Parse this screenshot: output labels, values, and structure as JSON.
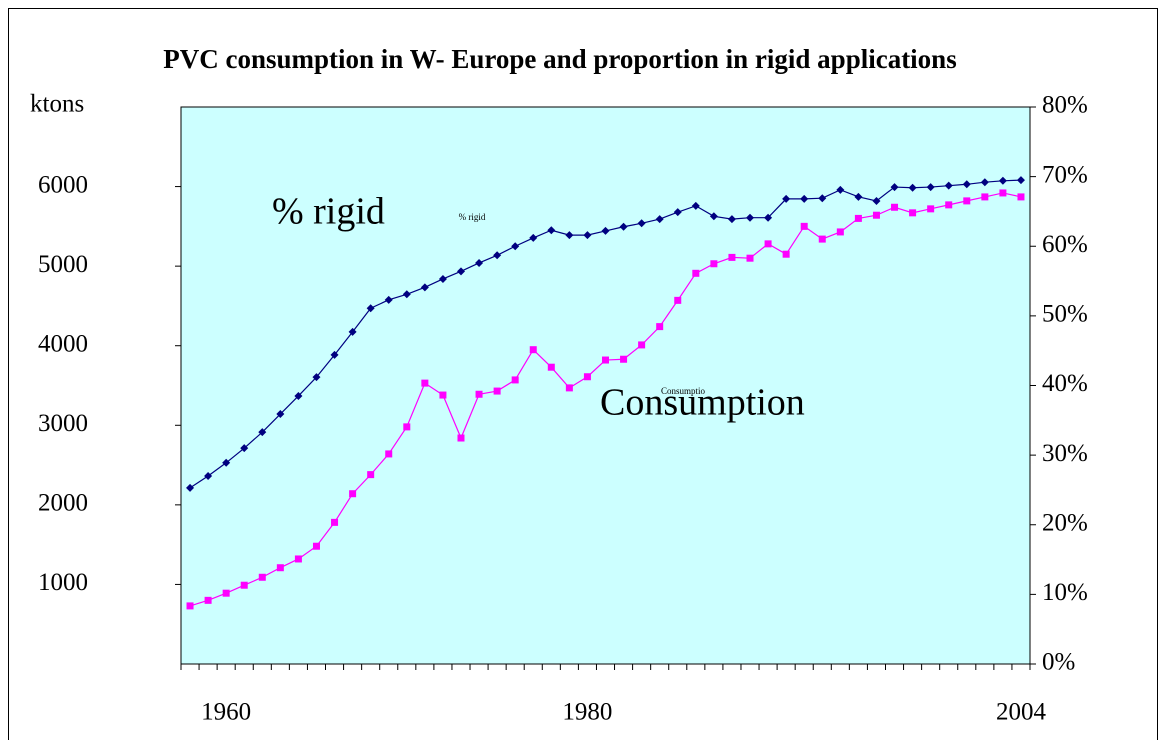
{
  "chart_data": {
    "type": "line",
    "title": "PVC consumption in W- Europe and proportion in rigid applications",
    "ylabel": "ktons",
    "categories": [
      null,
      null,
      "1960",
      null,
      null,
      null,
      null,
      null,
      null,
      null,
      null,
      null,
      null,
      null,
      null,
      null,
      null,
      null,
      null,
      null,
      null,
      null,
      "1980",
      null,
      null,
      null,
      null,
      null,
      null,
      null,
      null,
      null,
      null,
      null,
      null,
      null,
      null,
      null,
      null,
      null,
      null,
      null,
      null,
      null,
      null,
      null,
      "2004"
    ],
    "ylim": [
      0,
      7000
    ],
    "yticks": [
      1000,
      2000,
      3000,
      4000,
      5000,
      6000
    ],
    "y2lim": [
      0,
      80
    ],
    "y2ticks": [
      {
        "value": 0,
        "label": "0%"
      },
      {
        "value": 10,
        "label": "10%"
      },
      {
        "value": 20,
        "label": "20%"
      },
      {
        "value": 30,
        "label": "30%"
      },
      {
        "value": 40,
        "label": "40%"
      },
      {
        "value": 50,
        "label": "50%"
      },
      {
        "value": 60,
        "label": "60%"
      },
      {
        "value": 70,
        "label": "70%"
      },
      {
        "value": 80,
        "label": "80%"
      }
    ],
    "background": "#ccffff",
    "series": [
      {
        "name": "% rigid",
        "color": "#000080",
        "marker": "diamond",
        "axis": "y2",
        "values": [
          25.3,
          27.0,
          28.9,
          31.0,
          33.3,
          35.9,
          38.5,
          41.2,
          44.4,
          47.7,
          51.1,
          52.3,
          53.1,
          54.1,
          55.3,
          56.4,
          57.6,
          58.7,
          60.0,
          61.2,
          62.3,
          61.6,
          61.6,
          62.2,
          62.8,
          63.3,
          63.9,
          64.9,
          65.8,
          64.3,
          63.9,
          64.1,
          64.1,
          66.8,
          66.8,
          66.9,
          68.1,
          67.1,
          66.5,
          68.5,
          68.4,
          68.5,
          68.7,
          68.9,
          69.2,
          69.4,
          69.5
        ]
      },
      {
        "name": "Consumptio",
        "color": "#ff00ff",
        "marker": "square",
        "axis": "y",
        "values": [
          730,
          800,
          890,
          990,
          1090,
          1210,
          1320,
          1480,
          1780,
          2140,
          2380,
          2640,
          2980,
          3530,
          3380,
          2840,
          3390,
          3430,
          3570,
          3950,
          3730,
          3470,
          3610,
          3820,
          3830,
          4010,
          4240,
          4570,
          4910,
          5030,
          5110,
          5100,
          5280,
          5150,
          5500,
          5340,
          5430,
          5600,
          5640,
          5740,
          5670,
          5720,
          5770,
          5820,
          5870,
          5920,
          5870
        ]
      }
    ],
    "annotations": [
      "% rigid",
      "Consumption"
    ]
  }
}
